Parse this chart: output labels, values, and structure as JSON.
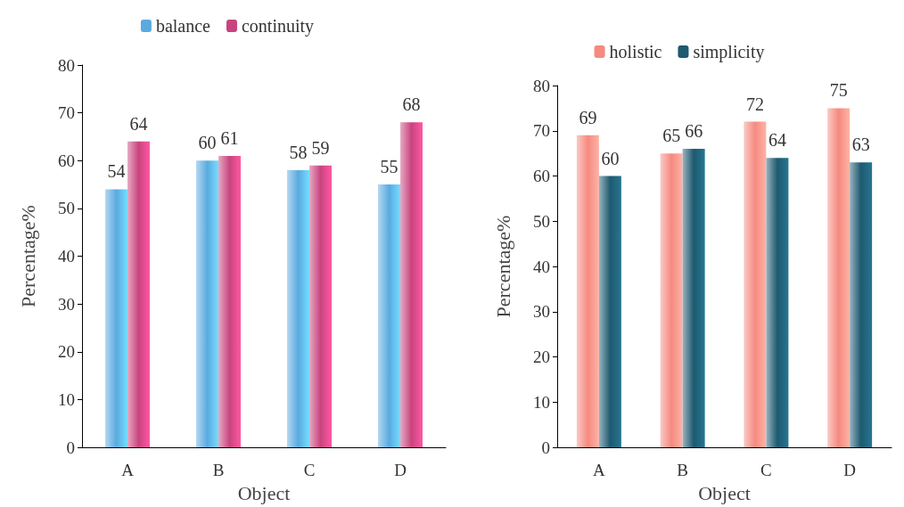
{
  "chart_data": [
    {
      "type": "bar",
      "xlabel": "Object",
      "ylabel": "Percentage%",
      "categories": [
        "A",
        "B",
        "C",
        "D"
      ],
      "series": [
        {
          "name": "balance",
          "color": "#5aaae0",
          "values": [
            54,
            60,
            58,
            55
          ]
        },
        {
          "name": "continuity",
          "color": "#c8447e",
          "values": [
            64,
            61,
            59,
            68
          ]
        }
      ],
      "ylim": [
        0,
        80
      ],
      "yticks": [
        0,
        10,
        20,
        30,
        40,
        50,
        60,
        70,
        80
      ],
      "grid": false,
      "legend": "top",
      "data_labels": true
    },
    {
      "type": "bar",
      "xlabel": "Object",
      "ylabel": "Percentage%",
      "categories": [
        "A",
        "B",
        "C",
        "D"
      ],
      "series": [
        {
          "name": "holistic",
          "color": "#f58a80",
          "values": [
            69,
            65,
            72,
            75
          ]
        },
        {
          "name": "simplicity",
          "color": "#1e5a70",
          "values": [
            60,
            66,
            64,
            63
          ]
        }
      ],
      "ylim": [
        0,
        80
      ],
      "yticks": [
        0,
        10,
        20,
        30,
        40,
        50,
        60,
        70,
        80
      ],
      "grid": false,
      "legend": "top",
      "data_labels": true
    }
  ]
}
